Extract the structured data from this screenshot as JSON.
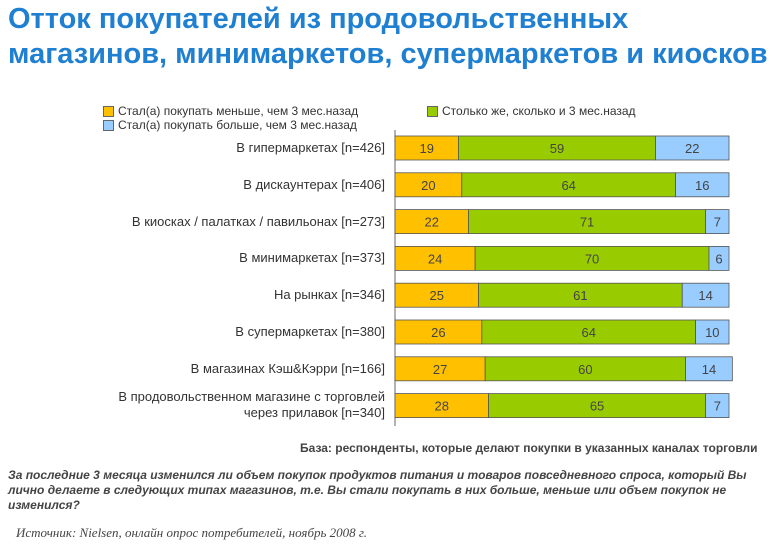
{
  "chart_data": {
    "type": "bar",
    "stacked": true,
    "orientation": "horizontal",
    "title": "Отток покупателей из продовольственных магазинов, минимаркетов, супермаркетов и киосков",
    "categories": [
      "В гипермаркетах [n=426]",
      "В дискаунтерах [n=406]",
      "В киосках / палатках / павильонах [n=273]",
      "В минимаркетах [n=373]",
      "На рынках [n=346]",
      "В супермаркетах [n=380]",
      "В магазинах Кэш&Кэрри [n=166]",
      "В продовольственном магазине с торговлей через прилавок [n=340]"
    ],
    "series": [
      {
        "name": "Стал(а) покупать меньше, чем 3 мес.назад",
        "color": "#ffc000",
        "values": [
          19,
          20,
          22,
          24,
          25,
          26,
          27,
          28
        ]
      },
      {
        "name": "Столько же, сколько и 3 мес.назад",
        "color": "#99cc00",
        "values": [
          59,
          64,
          71,
          70,
          61,
          64,
          60,
          65
        ]
      },
      {
        "name": "Стал(а) покупать больше, чем 3 мес.назад",
        "color": "#99ccff",
        "values": [
          22,
          16,
          7,
          6,
          14,
          10,
          14,
          7
        ]
      }
    ],
    "xlim": [
      0,
      100
    ],
    "legend_position": "top"
  },
  "labels_split": {
    "last_line1": "В продовольственном магазине с торговлей",
    "last_line2": "через прилавок [n=340]"
  },
  "base": "База: респонденты, которые делают покупки в указанных каналах торговли",
  "question": "За последние 3 месяца изменился ли объем покупок продуктов питания и товаров повседневного спроса, который Вы лично делаете в следующих типах магазинов, т.е. Вы стали покупать в них больше, меньше или объем покупок не изменился?",
  "source": "Источник: Nielsen, онлайн опрос потребителей, ноябрь 2008 г."
}
